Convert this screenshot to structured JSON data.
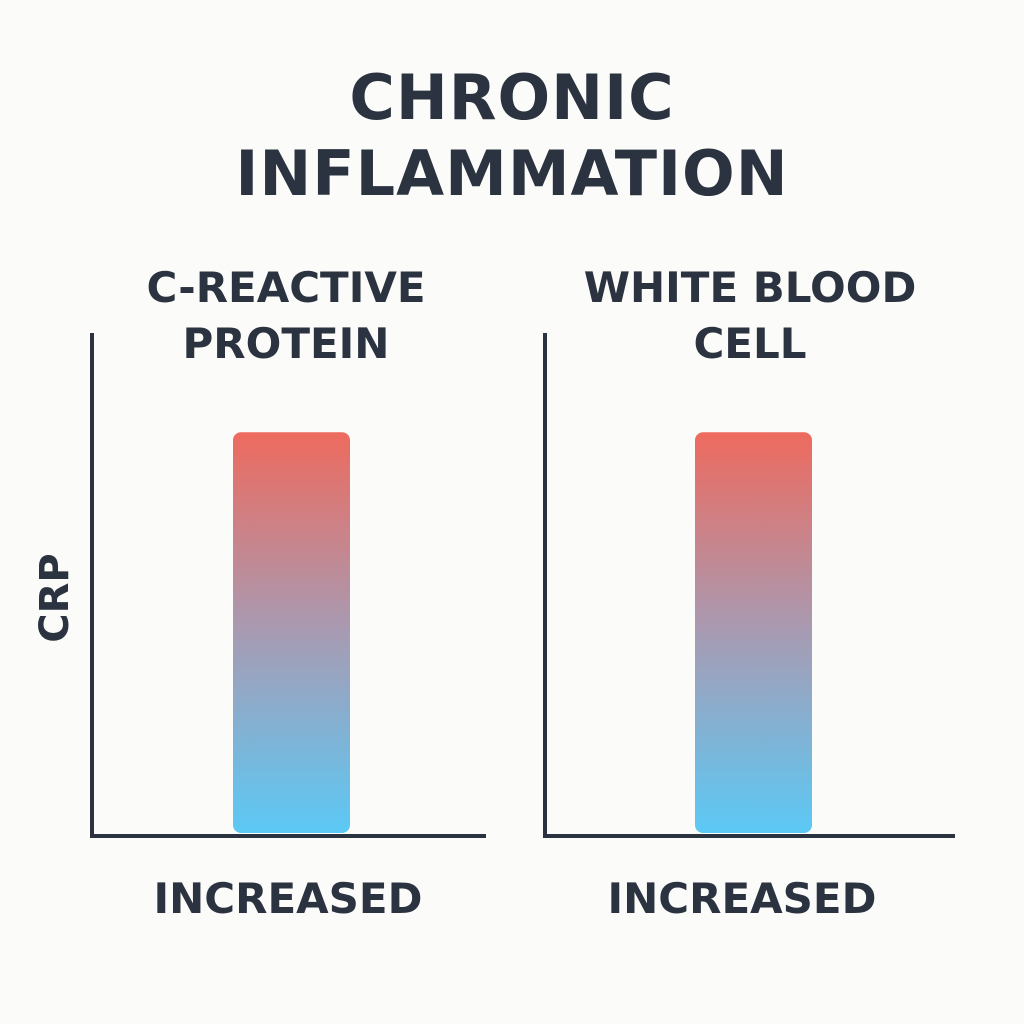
{
  "title_lines": [
    "CHRONIC",
    "INFLAMMATION"
  ],
  "chart_data": [
    {
      "type": "bar",
      "title_lines": [
        "C-REACTIVE",
        "PROTEIN"
      ],
      "ylabel": "CRP",
      "xlabel": "INCREASED",
      "categories": [
        "INCREASED"
      ],
      "values": [
        0.8
      ],
      "ylim": [
        0,
        1
      ],
      "grid": false,
      "colors": {
        "top": "#ee6a5e",
        "middle": "#a79bb3",
        "bottom": "#5bc9f5"
      }
    },
    {
      "type": "bar",
      "title_lines": [
        "WHITE BLOOD",
        "CELL"
      ],
      "ylabel": "",
      "xlabel": "INCREASED",
      "categories": [
        "INCREASED"
      ],
      "values": [
        0.8
      ],
      "ylim": [
        0,
        1
      ],
      "grid": false,
      "colors": {
        "top": "#ee6a5e",
        "middle": "#a79bb3",
        "bottom": "#5bc9f5"
      }
    }
  ]
}
